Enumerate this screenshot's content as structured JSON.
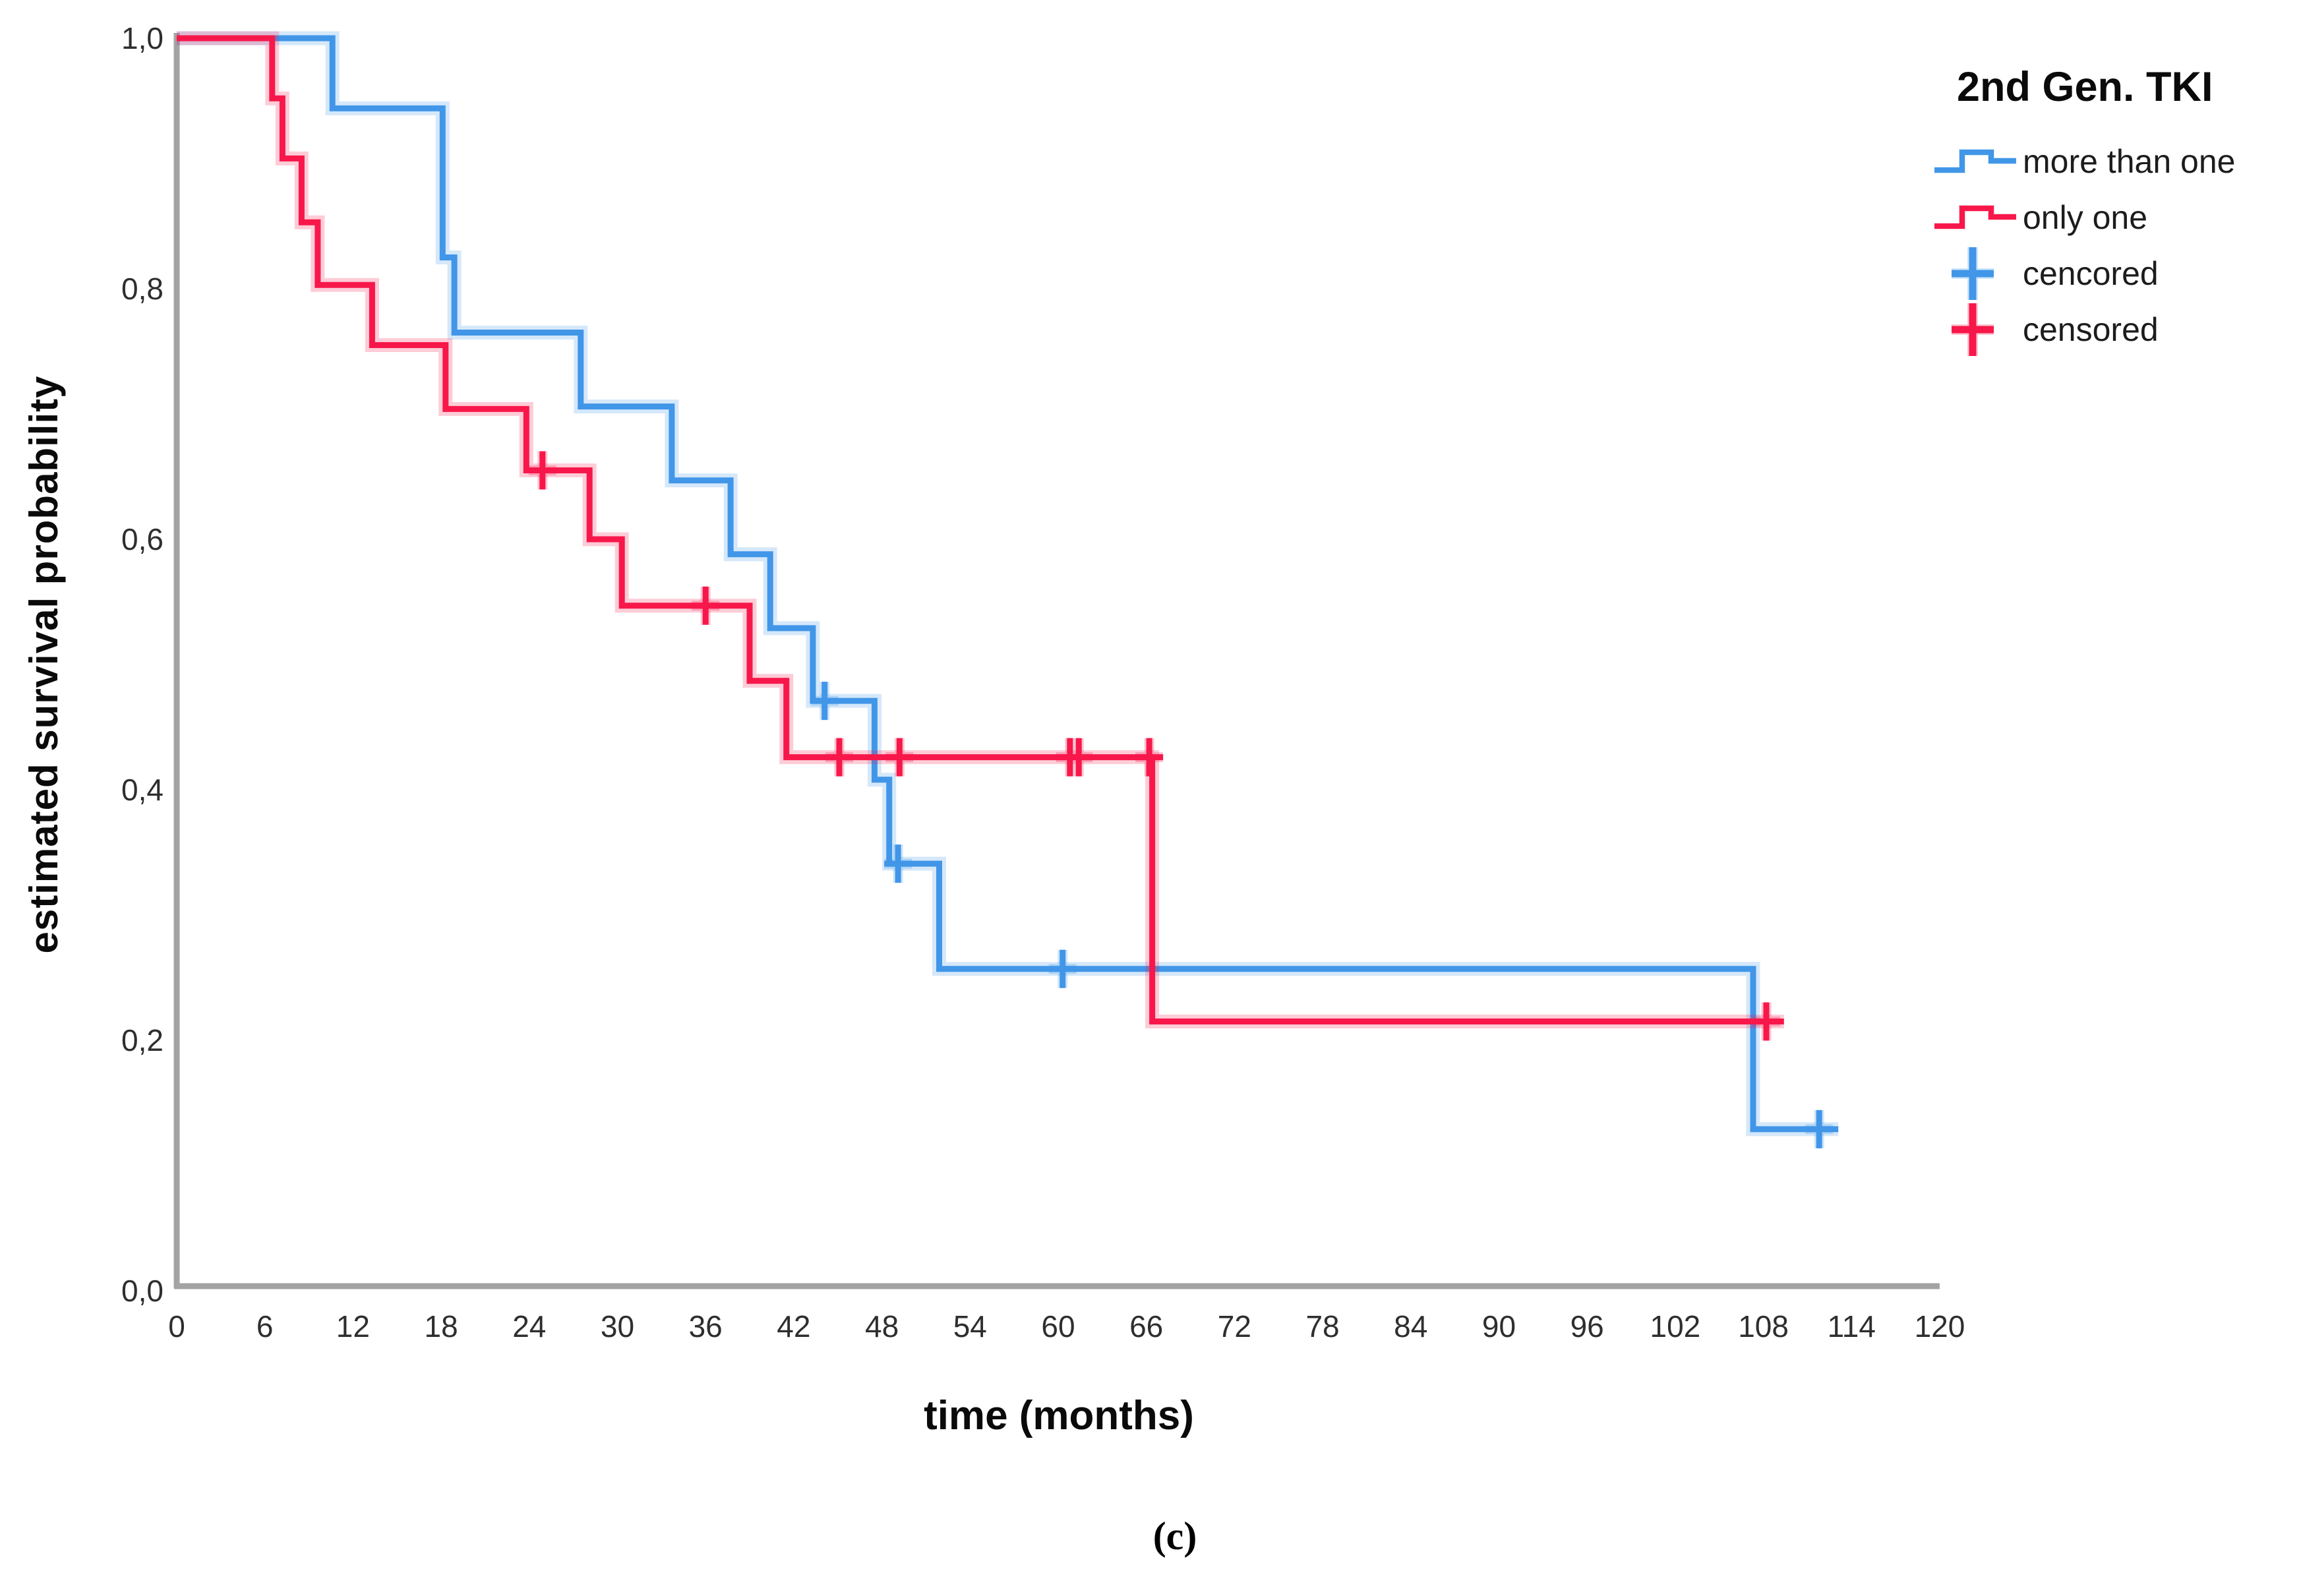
{
  "figure": {
    "background": "#ffffff",
    "caption": "(c)"
  },
  "axes": {
    "y": {
      "label": "estimated survival probability",
      "range": [
        0,
        1
      ],
      "ticks": [
        {
          "label": "0,0",
          "value": 0.0
        },
        {
          "label": "0,2",
          "value": 0.2
        },
        {
          "label": "0,4",
          "value": 0.4
        },
        {
          "label": "0,6",
          "value": 0.6
        },
        {
          "label": "0,8",
          "value": 0.8
        },
        {
          "label": "1,0",
          "value": 1.0
        }
      ]
    },
    "x": {
      "label": "time (months)",
      "range": [
        0,
        120
      ],
      "ticks": [
        {
          "label": "0",
          "value": 0
        },
        {
          "label": "6",
          "value": 6
        },
        {
          "label": "12",
          "value": 12
        },
        {
          "label": "18",
          "value": 18
        },
        {
          "label": "24",
          "value": 24
        },
        {
          "label": "30",
          "value": 30
        },
        {
          "label": "36",
          "value": 36
        },
        {
          "label": "42",
          "value": 42
        },
        {
          "label": "48",
          "value": 48
        },
        {
          "label": "54",
          "value": 54
        },
        {
          "label": "60",
          "value": 60
        },
        {
          "label": "66",
          "value": 66
        },
        {
          "label": "72",
          "value": 72
        },
        {
          "label": "78",
          "value": 78
        },
        {
          "label": "84",
          "value": 84
        },
        {
          "label": "90",
          "value": 90
        },
        {
          "label": "96",
          "value": 96
        },
        {
          "label": "102",
          "value": 102
        },
        {
          "label": "108",
          "value": 108
        },
        {
          "label": "114",
          "value": 114
        },
        {
          "label": "120",
          "value": 120
        }
      ]
    }
  },
  "legend": {
    "title": "2nd Gen. TKI",
    "items": [
      {
        "label": "more than one",
        "marker": "step-line",
        "color": "#4196E8"
      },
      {
        "label": "only one",
        "marker": "step-line",
        "color": "#F8174A"
      },
      {
        "label": "cencored",
        "marker": "plus",
        "color": "#4196E8"
      },
      {
        "label": "censored",
        "marker": "plus",
        "color": "#F8174A"
      }
    ]
  },
  "colors": {
    "blue": "#4196E8",
    "red": "#F8174A",
    "axis": "#A3A3A3",
    "tick_text": "#2e2e2e"
  },
  "chart_data": {
    "type": "line",
    "subtype": "kaplan-meier-step-function",
    "title": "2nd Gen. TKI",
    "xlabel": "time (months)",
    "ylabel": "estimated survival probability",
    "xlim": [
      0,
      120
    ],
    "ylim": [
      0.0,
      1.0
    ],
    "x_tick_step": 6,
    "y_tick_step": 0.2,
    "grid": false,
    "legend_position": "top-right",
    "series": [
      {
        "name": "more than one",
        "color": "#4196E8",
        "steps": [
          [
            0,
            1.0
          ],
          [
            10.6,
            0.944
          ],
          [
            18.1,
            0.825
          ],
          [
            18.9,
            0.765
          ],
          [
            27.5,
            0.706
          ],
          [
            33.7,
            0.647
          ],
          [
            37.7,
            0.588
          ],
          [
            40.4,
            0.529
          ],
          [
            43.3,
            0.471
          ],
          [
            47.5,
            0.408
          ],
          [
            48.5,
            0.341
          ],
          [
            51.9,
            0.257
          ],
          [
            107.3,
            0.129
          ]
        ],
        "end_month": 113.1,
        "censor_marks": [
          [
            44.1,
            0.471
          ],
          [
            49.1,
            0.341
          ],
          [
            60.3,
            0.257
          ],
          [
            111.8,
            0.129
          ]
        ]
      },
      {
        "name": "only one",
        "color": "#F8174A",
        "steps": [
          [
            0,
            1.0
          ],
          [
            6.5,
            0.952
          ],
          [
            7.2,
            0.904
          ],
          [
            8.5,
            0.853
          ],
          [
            9.6,
            0.803
          ],
          [
            13.3,
            0.755
          ],
          [
            18.3,
            0.704
          ],
          [
            23.8,
            0.655
          ],
          [
            28.1,
            0.6
          ],
          [
            30.3,
            0.547
          ],
          [
            39.0,
            0.487
          ],
          [
            41.5,
            0.426
          ],
          [
            66.4,
            0.215
          ]
        ],
        "end_month": 109.4,
        "censor_marks": [
          [
            24.9,
            0.655
          ],
          [
            36.0,
            0.547
          ],
          [
            45.1,
            0.426
          ],
          [
            49.2,
            0.426
          ],
          [
            60.8,
            0.426
          ],
          [
            61.4,
            0.426
          ],
          [
            66.2,
            0.426
          ],
          [
            108.2,
            0.215
          ]
        ]
      }
    ]
  }
}
